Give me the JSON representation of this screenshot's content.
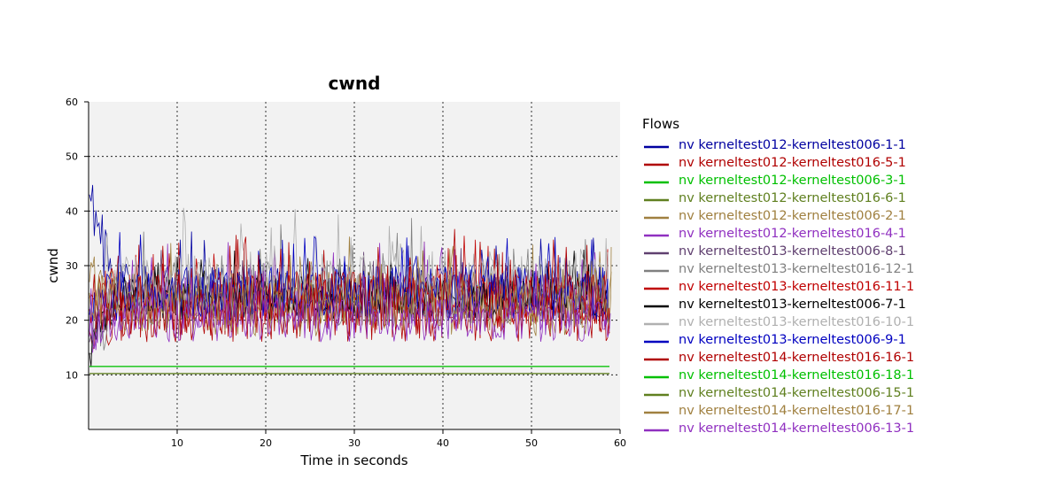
{
  "chart_data": {
    "type": "line",
    "title": "cwnd",
    "xlabel": "Time in seconds",
    "ylabel": "cwnd",
    "xlim": [
      0,
      60
    ],
    "ylim": [
      0,
      60
    ],
    "xticks": [
      "10",
      "20",
      "30",
      "40",
      "50",
      "60"
    ],
    "yticks": [
      "10",
      "20",
      "30",
      "40",
      "50",
      "60"
    ],
    "grid": true,
    "legend": {
      "title": "Flows",
      "placement": "right"
    },
    "series": [
      {
        "name": "nv kerneltest012-kerneltest006-1-1",
        "color": "#0000a0",
        "start": 0.1,
        "end": 58.6,
        "level": 25,
        "amp": 5,
        "init": 43,
        "seed": 1
      },
      {
        "name": "nv kerneltest012-kerneltest016-5-1",
        "color": "#b00000",
        "start": 0.1,
        "end": 58.8,
        "level": 22,
        "amp": 6,
        "init": 18,
        "seed": 2
      },
      {
        "name": "nv kerneltest012-kerneltest006-3-1",
        "color": "#00c000",
        "start": 0.1,
        "end": 58.8,
        "level": 11.5,
        "amp": 0,
        "init": 11.5,
        "seed": 3
      },
      {
        "name": "nv kerneltest012-kerneltest016-6-1",
        "color": "#608020",
        "start": 0.1,
        "end": 58.8,
        "level": 10.3,
        "amp": 0,
        "init": 10.3,
        "seed": 4
      },
      {
        "name": "nv kerneltest012-kerneltest006-2-1",
        "color": "#a08040",
        "start": 0.1,
        "end": 59.0,
        "level": 24,
        "amp": 5,
        "init": 27,
        "seed": 5
      },
      {
        "name": "nv kerneltest012-kerneltest016-4-1",
        "color": "#9030c0",
        "start": 0.1,
        "end": 58.6,
        "level": 23,
        "amp": 5,
        "init": 18,
        "seed": 6
      },
      {
        "name": "nv kerneltest013-kerneltest006-8-1",
        "color": "#604070",
        "start": 0.1,
        "end": 58.6,
        "level": 24,
        "amp": 4,
        "init": 16,
        "seed": 7
      },
      {
        "name": "nv kerneltest013-kerneltest016-12-1",
        "color": "#808080",
        "start": 0.1,
        "end": 58.6,
        "level": 25,
        "amp": 6,
        "init": 14,
        "seed": 8
      },
      {
        "name": "nv kerneltest013-kerneltest016-11-1",
        "color": "#c00000",
        "start": 0.1,
        "end": 58.6,
        "level": 24,
        "amp": 5,
        "init": 22,
        "seed": 9
      },
      {
        "name": "nv kerneltest013-kerneltest006-7-1",
        "color": "#000000",
        "start": 0.1,
        "end": 58.6,
        "level": 24,
        "amp": 4,
        "init": 14,
        "seed": 10
      },
      {
        "name": "nv kerneltest013-kerneltest016-10-1",
        "color": "#b0b0b0",
        "start": 0.1,
        "end": 58.6,
        "level": 27,
        "amp": 6,
        "init": 20,
        "seed": 11
      },
      {
        "name": "nv kerneltest013-kerneltest006-9-1",
        "color": "#0000c0",
        "start": 0.1,
        "end": 58.6,
        "level": 25,
        "amp": 5,
        "init": 21,
        "seed": 12
      },
      {
        "name": "nv kerneltest014-kerneltest016-16-1",
        "color": "#b00000",
        "start": 0.1,
        "end": 58.8,
        "level": 23,
        "amp": 6,
        "init": 24,
        "seed": 13
      },
      {
        "name": "nv kerneltest014-kerneltest016-18-1",
        "color": "#00c000",
        "start": 0.1,
        "end": 58.8,
        "level": 11.6,
        "amp": 0,
        "init": 11.6,
        "seed": 14
      },
      {
        "name": "nv kerneltest014-kerneltest006-15-1",
        "color": "#608020",
        "start": 0.1,
        "end": 58.8,
        "level": 10.2,
        "amp": 0,
        "init": 10.2,
        "seed": 15
      },
      {
        "name": "nv kerneltest014-kerneltest016-17-1",
        "color": "#a08040",
        "start": 0.1,
        "end": 59.0,
        "level": 22,
        "amp": 5,
        "init": 25,
        "seed": 16
      },
      {
        "name": "nv kerneltest014-kerneltest006-13-1",
        "color": "#9030c0",
        "start": 0.1,
        "end": 58.9,
        "level": 20,
        "amp": 4,
        "init": 17,
        "seed": 17
      }
    ]
  }
}
